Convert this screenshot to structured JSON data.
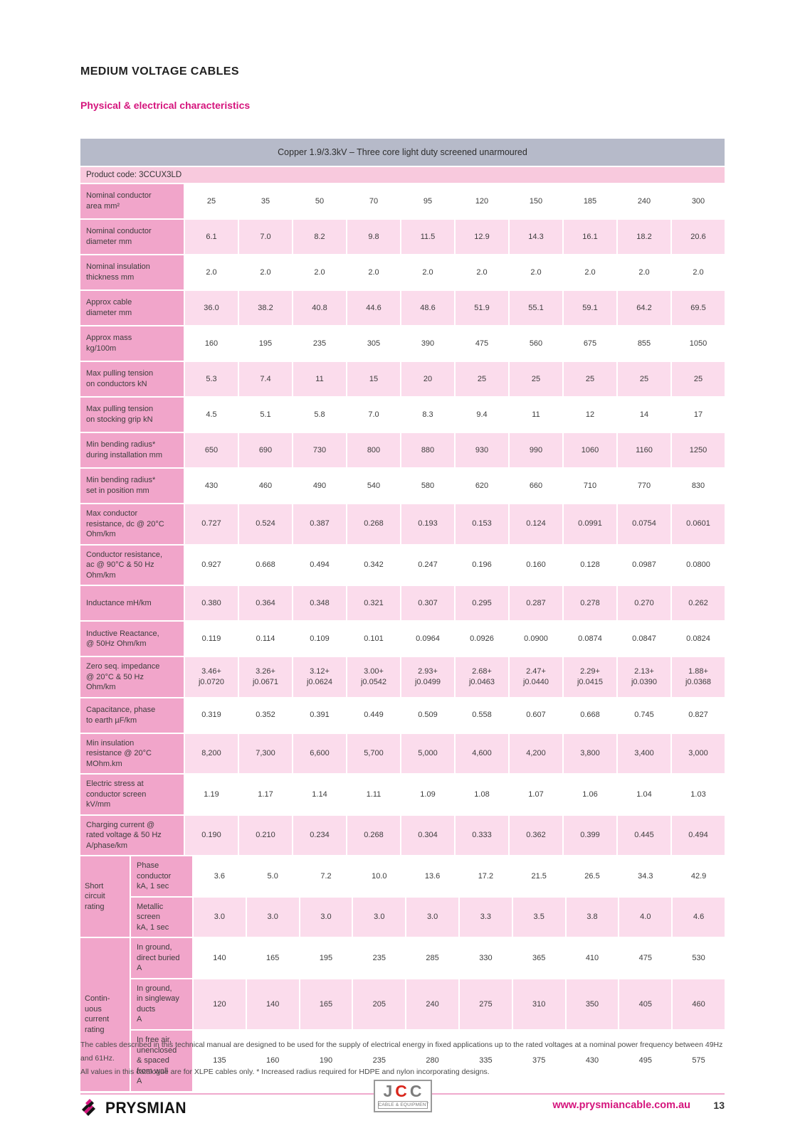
{
  "page": {
    "title": "MEDIUM VOLTAGE CABLES",
    "subtitle": "Physical & electrical characteristics"
  },
  "table": {
    "title": "Copper 1.9/3.3kV – Three core light duty screened unarmoured",
    "product_code": "Product code: 3CCUX3LD",
    "rows": [
      {
        "label": "Nominal conductor\narea mm²",
        "values": [
          "25",
          "35",
          "50",
          "70",
          "95",
          "120",
          "150",
          "185",
          "240",
          "300"
        ]
      },
      {
        "label": "Nominal conductor\ndiameter mm",
        "values": [
          "6.1",
          "7.0",
          "8.2",
          "9.8",
          "11.5",
          "12.9",
          "14.3",
          "16.1",
          "18.2",
          "20.6"
        ]
      },
      {
        "label": "Nominal insulation\nthickness mm",
        "values": [
          "2.0",
          "2.0",
          "2.0",
          "2.0",
          "2.0",
          "2.0",
          "2.0",
          "2.0",
          "2.0",
          "2.0"
        ]
      },
      {
        "label": "Approx cable\ndiameter mm",
        "values": [
          "36.0",
          "38.2",
          "40.8",
          "44.6",
          "48.6",
          "51.9",
          "55.1",
          "59.1",
          "64.2",
          "69.5"
        ]
      },
      {
        "label": "Approx mass\nkg/100m",
        "values": [
          "160",
          "195",
          "235",
          "305",
          "390",
          "475",
          "560",
          "675",
          "855",
          "1050"
        ]
      },
      {
        "label": "Max pulling tension\non conductors kN",
        "values": [
          "5.3",
          "7.4",
          "11",
          "15",
          "20",
          "25",
          "25",
          "25",
          "25",
          "25"
        ]
      },
      {
        "label": "Max pulling tension\non stocking grip kN",
        "values": [
          "4.5",
          "5.1",
          "5.8",
          "7.0",
          "8.3",
          "9.4",
          "11",
          "12",
          "14",
          "17"
        ]
      },
      {
        "label": "Min bending radius*\nduring installation mm",
        "values": [
          "650",
          "690",
          "730",
          "800",
          "880",
          "930",
          "990",
          "1060",
          "1160",
          "1250"
        ]
      },
      {
        "label": "Min bending radius*\nset in position mm",
        "values": [
          "430",
          "460",
          "490",
          "540",
          "580",
          "620",
          "660",
          "710",
          "770",
          "830"
        ]
      },
      {
        "label": "Max conductor\nresistance, dc @ 20°C\nOhm/km",
        "values": [
          "0.727",
          "0.524",
          "0.387",
          "0.268",
          "0.193",
          "0.153",
          "0.124",
          "0.0991",
          "0.0754",
          "0.0601"
        ]
      },
      {
        "label": "Conductor resistance,\nac @ 90°C & 50 Hz\nOhm/km",
        "values": [
          "0.927",
          "0.668",
          "0.494",
          "0.342",
          "0.247",
          "0.196",
          "0.160",
          "0.128",
          "0.0987",
          "0.0800"
        ]
      },
      {
        "label": "Inductance mH/km",
        "values": [
          "0.380",
          "0.364",
          "0.348",
          "0.321",
          "0.307",
          "0.295",
          "0.287",
          "0.278",
          "0.270",
          "0.262"
        ]
      },
      {
        "label": "Inductive Reactance,\n@ 50Hz Ohm/km",
        "values": [
          "0.119",
          "0.114",
          "0.109",
          "0.101",
          "0.0964",
          "0.0926",
          "0.0900",
          "0.0874",
          "0.0847",
          "0.0824"
        ]
      },
      {
        "label": "Zero seq. impedance\n@ 20°C & 50 Hz\nOhm/km",
        "values": [
          "3.46+\nj0.0720",
          "3.26+\nj0.0671",
          "3.12+\nj0.0624",
          "3.00+\nj0.0542",
          "2.93+\nj0.0499",
          "2.68+\nj0.0463",
          "2.47+\nj0.0440",
          "2.29+\nj0.0415",
          "2.13+\nj0.0390",
          "1.88+\nj0.0368"
        ]
      },
      {
        "label": "Capacitance, phase\nto earth µF/km",
        "values": [
          "0.319",
          "0.352",
          "0.391",
          "0.449",
          "0.509",
          "0.558",
          "0.607",
          "0.668",
          "0.745",
          "0.827"
        ]
      },
      {
        "label": "Min insulation\nresistance @ 20°C\nMOhm.km",
        "values": [
          "8,200",
          "7,300",
          "6,600",
          "5,700",
          "5,000",
          "4,600",
          "4,200",
          "3,800",
          "3,400",
          "3,000"
        ]
      },
      {
        "label": "Electric stress at\nconductor screen\nkV/mm",
        "values": [
          "1.19",
          "1.17",
          "1.14",
          "1.11",
          "1.09",
          "1.08",
          "1.07",
          "1.06",
          "1.04",
          "1.03"
        ]
      },
      {
        "label": "Charging current @\nrated voltage & 50 Hz\nA/phase/km",
        "values": [
          "0.190",
          "0.210",
          "0.234",
          "0.268",
          "0.304",
          "0.333",
          "0.362",
          "0.399",
          "0.445",
          "0.494"
        ]
      }
    ],
    "groups": [
      {
        "label": "Short\ncircuit\nrating",
        "rows": [
          {
            "label": "Phase\nconductor\nkA, 1 sec",
            "values": [
              "3.6",
              "5.0",
              "7.2",
              "10.0",
              "13.6",
              "17.2",
              "21.5",
              "26.5",
              "34.3",
              "42.9"
            ]
          },
          {
            "label": "Metallic\nscreen\nkA, 1 sec",
            "values": [
              "3.0",
              "3.0",
              "3.0",
              "3.0",
              "3.0",
              "3.3",
              "3.5",
              "3.8",
              "4.0",
              "4.6"
            ]
          }
        ]
      },
      {
        "label": "Contin-\nuous\ncurrent\nrating",
        "rows": [
          {
            "label": "In ground,\ndirect buried\nA",
            "values": [
              "140",
              "165",
              "195",
              "235",
              "285",
              "330",
              "365",
              "410",
              "475",
              "530"
            ]
          },
          {
            "label": "In ground,\nin singleway\nducts\nA",
            "values": [
              "120",
              "140",
              "165",
              "205",
              "240",
              "275",
              "310",
              "350",
              "405",
              "460"
            ]
          },
          {
            "label": "In free air,\nunenclosed\n& spaced\nfrom wall\nA",
            "values": [
              "135",
              "160",
              "190",
              "235",
              "280",
              "335",
              "375",
              "430",
              "495",
              "575"
            ]
          }
        ]
      }
    ]
  },
  "footer": {
    "note1": "The cables described in this technical manual are designed to be used for the supply of electrical energy in fixed applications up to the rated voltages at a nominal power frequency between 49Hz and 61Hz.",
    "note2": "All values in this catalogue are for XLPE cables only. * Increased radius required for HDPE and nylon incorporating designs.",
    "prysmian_text": "PRYSMIAN",
    "jcc_letters": [
      "J",
      "C",
      "C"
    ],
    "jcc_sub": "CABLE & EQUIPMENT",
    "website": "www.prysmiancable.com.au",
    "page_number": "13"
  },
  "colors": {
    "accent_magenta": "#d5157d",
    "header_bg": "#b6bac9",
    "label_bg": "#f1a5ca",
    "stripe_bg": "#fbdcec",
    "product_bg": "#f8c9dd",
    "jcc_red": "#d9261c"
  }
}
